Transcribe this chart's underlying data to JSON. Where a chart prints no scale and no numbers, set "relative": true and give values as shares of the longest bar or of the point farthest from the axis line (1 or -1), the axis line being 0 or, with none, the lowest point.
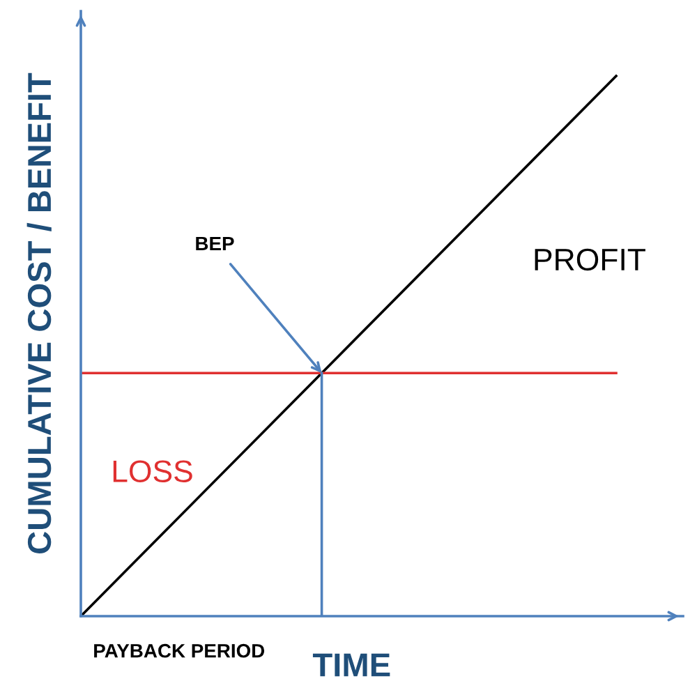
{
  "chart_data": {
    "type": "line",
    "relative": true,
    "ylabel": "CUMULATIVE COST / BENEFIT",
    "xlabel": "TIME",
    "categories": [
      null,
      null
    ],
    "series": [
      {
        "color": "#000000",
        "values": [
          0,
          1
        ]
      },
      {
        "color": "#e03030",
        "values": [
          0.45,
          0.45
        ]
      }
    ],
    "annotations": [
      "BEP",
      "PROFIT",
      "LOSS",
      "PAYBACK PERIOD"
    ],
    "marker": "none",
    "line_style": "solid"
  }
}
